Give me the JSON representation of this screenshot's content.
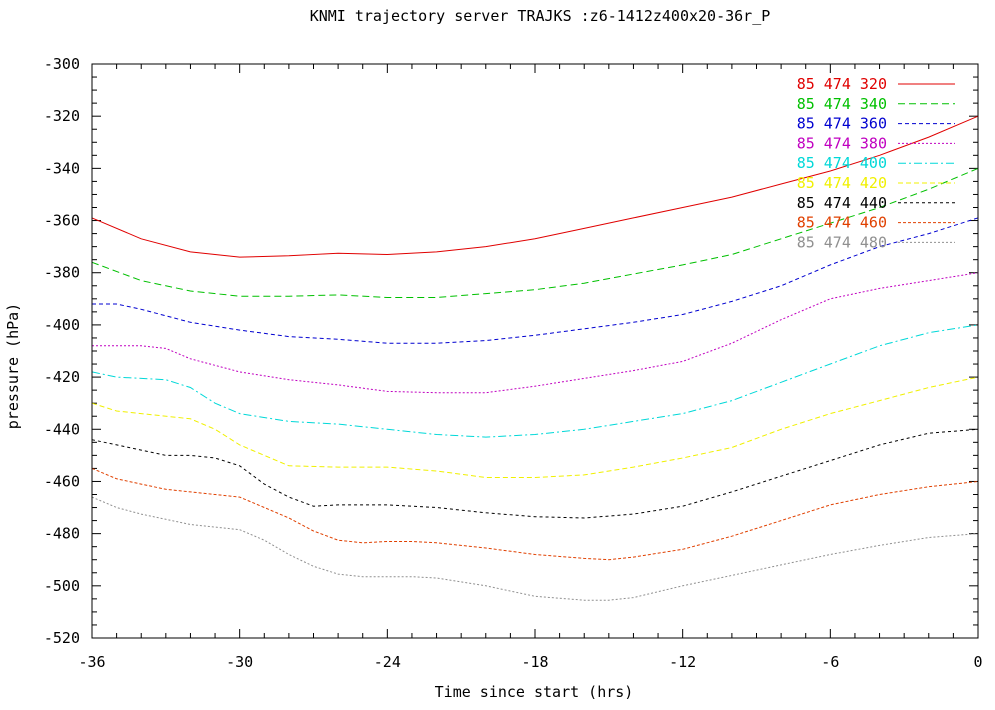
{
  "chart_data": {
    "type": "line",
    "title": "KNMI trajectory server TRAJKS :z6-1412z400x20-36r_P",
    "xlabel": "Time since start (hrs)",
    "ylabel": "pressure (hPa)",
    "xlim": [
      -36,
      0
    ],
    "ylim": [
      -520,
      -300
    ],
    "xticks": [
      -36,
      -30,
      -24,
      -18,
      -12,
      -6,
      0
    ],
    "yticks": [
      -300,
      -320,
      -340,
      -360,
      -380,
      -400,
      -420,
      -440,
      -460,
      -480,
      -500,
      -520
    ],
    "grid": false,
    "legend_position": "top-right",
    "series": [
      {
        "name": "85 474 320",
        "color": "#e00000",
        "dash": "solid",
        "x": [
          -36,
          -34,
          -32,
          -30,
          -28,
          -26,
          -24,
          -22,
          -20,
          -18,
          -16,
          -14,
          -12,
          -10,
          -8,
          -6,
          -4,
          -2,
          0
        ],
        "y": [
          -359,
          -367,
          -372,
          -374,
          -373.5,
          -372.5,
          -373,
          -372,
          -370,
          -367,
          -363,
          -359,
          -355,
          -351,
          -346,
          -341,
          -335,
          -328,
          -320
        ]
      },
      {
        "name": "85 474 340",
        "color": "#00c000",
        "dash": "7,4",
        "x": [
          -36,
          -34,
          -32,
          -30,
          -28,
          -26,
          -24,
          -22,
          -20,
          -18,
          -16,
          -14,
          -12,
          -10,
          -8,
          -6,
          -4,
          -2,
          0
        ],
        "y": [
          -376,
          -383,
          -387,
          -389,
          -389,
          -388.5,
          -389.5,
          -389.5,
          -388,
          -386.5,
          -384,
          -380.5,
          -377,
          -373,
          -367,
          -361,
          -355,
          -348,
          -340
        ]
      },
      {
        "name": "85 474 360",
        "color": "#0000d0",
        "dash": "4,3",
        "x": [
          -36,
          -35,
          -34,
          -32,
          -30,
          -28,
          -26,
          -24,
          -22,
          -20,
          -18,
          -16,
          -14,
          -12,
          -10,
          -8,
          -6,
          -4,
          -2,
          0
        ],
        "y": [
          -392,
          -392,
          -394,
          -399,
          -402,
          -404.5,
          -405.5,
          -407,
          -407,
          -406,
          -404,
          -401.5,
          -399,
          -396,
          -391,
          -385,
          -377,
          -370,
          -365,
          -359
        ]
      },
      {
        "name": "85 474 380",
        "color": "#c000c0",
        "dash": "2,2",
        "x": [
          -36,
          -34,
          -33,
          -32,
          -30,
          -28,
          -26,
          -24,
          -22,
          -20,
          -18,
          -16,
          -14,
          -12,
          -10,
          -8,
          -6,
          -4,
          -2,
          0
        ],
        "y": [
          -408,
          -408,
          -409,
          -413,
          -418,
          -421,
          -423,
          -425.5,
          -426,
          -426,
          -423.5,
          -420.5,
          -417.5,
          -414,
          -407,
          -398,
          -390,
          -386,
          -383,
          -380
        ]
      },
      {
        "name": "85 474 400",
        "color": "#00d8d8",
        "dash": "8,3,2,3",
        "x": [
          -36,
          -35,
          -33,
          -32,
          -31,
          -30,
          -28,
          -26,
          -24,
          -22,
          -20,
          -18,
          -16,
          -14,
          -12,
          -10,
          -8,
          -6,
          -4,
          -2,
          0
        ],
        "y": [
          -418,
          -420,
          -421,
          -424,
          -430,
          -434,
          -437,
          -438,
          -440,
          -442,
          -443,
          -442,
          -440,
          -437,
          -434,
          -429,
          -422,
          -415,
          -408,
          -403,
          -400
        ]
      },
      {
        "name": "85 474 420",
        "color": "#f0f000",
        "dash": "5,3",
        "x": [
          -36,
          -35,
          -34,
          -32,
          -31,
          -30,
          -29,
          -28,
          -26,
          -24,
          -22,
          -20,
          -18,
          -16,
          -14,
          -12,
          -10,
          -8,
          -6,
          -4,
          -2,
          0
        ],
        "y": [
          -430,
          -433,
          -434,
          -436,
          -440,
          -446,
          -450,
          -454,
          -454.5,
          -454.5,
          -456,
          -458.5,
          -458.5,
          -457.5,
          -454.5,
          -451,
          -447,
          -440,
          -434,
          -429,
          -424,
          -420
        ]
      },
      {
        "name": "85 474 440",
        "color": "#000000",
        "dash": "3,3",
        "x": [
          -36,
          -34,
          -33,
          -32,
          -31,
          -30,
          -29,
          -28,
          -27,
          -26,
          -24,
          -22,
          -20,
          -18,
          -16,
          -14,
          -12,
          -10,
          -8,
          -6,
          -4,
          -2,
          0
        ],
        "y": [
          -444,
          -448,
          -450,
          -450,
          -451,
          -454,
          -461,
          -466,
          -469.5,
          -469,
          -469,
          -470,
          -472,
          -473.5,
          -474,
          -472.5,
          -469.5,
          -464,
          -458,
          -452,
          -446,
          -441.5,
          -440
        ]
      },
      {
        "name": "85 474 460",
        "color": "#e04000",
        "dash": "3,2",
        "x": [
          -36,
          -35,
          -34,
          -33,
          -32,
          -31,
          -30,
          -29,
          -28,
          -27,
          -26,
          -25,
          -24,
          -23,
          -22,
          -20,
          -18,
          -16,
          -15,
          -14,
          -12,
          -10,
          -8,
          -6,
          -4,
          -2,
          0
        ],
        "y": [
          -455,
          -459,
          -461,
          -463,
          -464,
          -465,
          -466,
          -470,
          -474,
          -479,
          -482.5,
          -483.5,
          -483,
          -483,
          -483.5,
          -485.5,
          -488,
          -489.5,
          -490,
          -489,
          -486,
          -481,
          -475,
          -469,
          -465,
          -462,
          -460
        ]
      },
      {
        "name": "85 474 480",
        "color": "#909090",
        "dash": "2,2",
        "x": [
          -36,
          -35,
          -34,
          -33,
          -32,
          -31,
          -30,
          -29,
          -28,
          -27,
          -26,
          -25,
          -24,
          -23,
          -22,
          -20,
          -18,
          -16,
          -15,
          -14,
          -12,
          -10,
          -8,
          -6,
          -4,
          -2,
          0
        ],
        "y": [
          -466,
          -470,
          -472.5,
          -474.5,
          -476.5,
          -477.5,
          -478.5,
          -482.5,
          -488,
          -492.5,
          -495.5,
          -496.5,
          -496.5,
          -496.5,
          -497,
          -500,
          -504,
          -505.5,
          -505.5,
          -504.5,
          -500,
          -496,
          -492,
          -488,
          -484.5,
          -481.5,
          -480
        ]
      }
    ]
  }
}
